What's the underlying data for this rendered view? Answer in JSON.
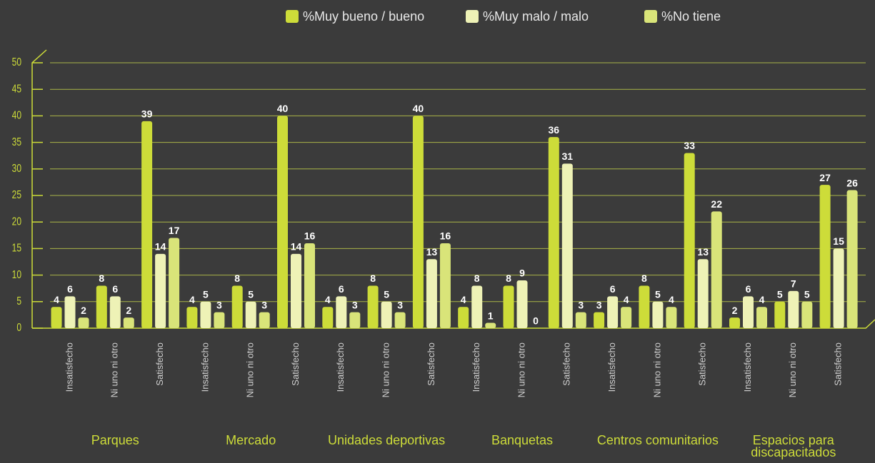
{
  "chart_data": {
    "type": "grouped-bar",
    "categories": [
      "Insatisfecho",
      "Ni uno ni otro",
      "Satisfecho",
      "Insatisfecho",
      "Ni uno ni otro",
      "Satisfecho",
      "Insatisfecho",
      "Ni uno ni otro",
      "Satisfecho",
      "Insatisfecho",
      "Ni uno ni otro",
      "Satisfecho",
      "Insatisfecho",
      "Ni uno ni otro",
      "Satisfecho",
      "Insatisfecho",
      "Ni uno ni otro",
      "Satisfecho"
    ],
    "groups": [
      "Parques",
      "Mercado",
      "Unidades deportivas",
      "Banquetas",
      "Centros comunitarios",
      "Espacios para discapacitados"
    ],
    "series": [
      {
        "name": "%Muy bueno / bueno",
        "color": "#cddc39",
        "values": [
          4,
          8,
          39,
          4,
          8,
          40,
          4,
          8,
          40,
          4,
          8,
          36,
          3,
          8,
          33,
          2,
          5,
          27
        ]
      },
      {
        "name": "%Muy malo / malo",
        "color": "#eef2b6",
        "values": [
          6,
          6,
          14,
          5,
          5,
          14,
          6,
          5,
          13,
          8,
          9,
          31,
          6,
          5,
          13,
          6,
          7,
          15
        ]
      },
      {
        "name": "%No tiene",
        "color": "#d9e479",
        "values": [
          2,
          2,
          17,
          3,
          3,
          16,
          3,
          3,
          16,
          1,
          0,
          3,
          4,
          4,
          22,
          4,
          5,
          26
        ]
      }
    ],
    "ylim": [
      0,
      50
    ],
    "yticks": [
      0,
      5,
      10,
      15,
      20,
      25,
      30,
      35,
      40,
      45,
      50
    ],
    "grid": true
  }
}
